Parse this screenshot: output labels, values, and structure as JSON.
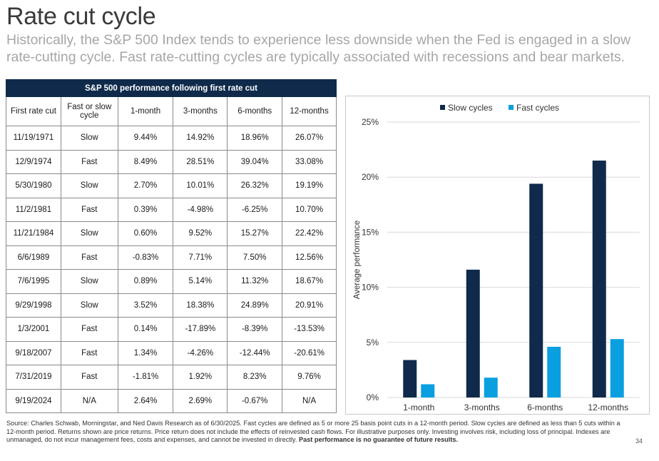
{
  "title": "Rate cut cycle",
  "subtitle": "Historically, the S&P 500 Index tends to experience less downside when the Fed is engaged in a slow rate-cutting cycle. Fast rate-cutting cycles are typically associated with recessions and bear markets.",
  "table": {
    "caption": "S&P 500 performance following first rate cut",
    "headers": [
      "First rate cut",
      "Fast or slow cycle",
      "1-month",
      "3-months",
      "6-months",
      "12-months"
    ],
    "rows": [
      [
        "11/19/1971",
        "Slow",
        "9.44%",
        "14.92%",
        "18.96%",
        "26.07%"
      ],
      [
        "12/9/1974",
        "Fast",
        "8.49%",
        "28.51%",
        "39.04%",
        "33.08%"
      ],
      [
        "5/30/1980",
        "Slow",
        "2.70%",
        "10.01%",
        "26.32%",
        "19.19%"
      ],
      [
        "11/2/1981",
        "Fast",
        "0.39%",
        "-4.98%",
        "-6.25%",
        "10.70%"
      ],
      [
        "11/21/1984",
        "Slow",
        "0.60%",
        "9.52%",
        "15.27%",
        "22.42%"
      ],
      [
        "6/6/1989",
        "Fast",
        "-0.83%",
        "7.71%",
        "7.50%",
        "12.56%"
      ],
      [
        "7/6/1995",
        "Slow",
        "0.89%",
        "5.14%",
        "11.32%",
        "18.67%"
      ],
      [
        "9/29/1998",
        "Slow",
        "3.52%",
        "18.38%",
        "24.89%",
        "20.91%"
      ],
      [
        "1/3/2001",
        "Fast",
        "0.14%",
        "-17.89%",
        "-8.39%",
        "-13.53%"
      ],
      [
        "9/18/2007",
        "Fast",
        "1.34%",
        "-4.26%",
        "-12.44%",
        "-20.61%"
      ],
      [
        "7/31/2019",
        "Fast",
        "-1.81%",
        "1.92%",
        "8.23%",
        "9.76%"
      ],
      [
        "9/19/2024",
        "N/A",
        "2.64%",
        "2.69%",
        "-0.67%",
        "N/A"
      ]
    ]
  },
  "chart_data": {
    "type": "bar",
    "title": "",
    "xlabel": "",
    "ylabel": "Average performance",
    "categories": [
      "1-month",
      "3-months",
      "6-months",
      "12-months"
    ],
    "series": [
      {
        "name": "Slow cycles",
        "color": "#0f2a4a",
        "values": [
          3.4,
          11.6,
          19.4,
          21.5
        ]
      },
      {
        "name": "Fast cycles",
        "color": "#0aa0e0",
        "values": [
          1.2,
          1.8,
          4.6,
          5.3
        ]
      }
    ],
    "ylim": [
      0,
      25
    ],
    "yticks": [
      0,
      5,
      10,
      15,
      20,
      25
    ],
    "ytick_labels": [
      "0%",
      "5%",
      "10%",
      "15%",
      "20%",
      "25%"
    ],
    "legend_position": "top",
    "grid": true
  },
  "footnote": {
    "text": "Source: Charles Schwab, Morningstar, and Ned Davis Research as of 6/30/2025. Fast cycles are defined as 5 or more 25 basis point cuts in a 12-month period. Slow cycles are defined as less than 5 cuts within a 12-month period. Returns shown are price returns. Price return does not include the effects of reinvested cash flows. For illustrative purposes only. Investing involves risk, including loss of principal. Indexes are unmanaged, do not incur management fees, costs and expenses, and cannot be invested in directly. ",
    "bold": "Past performance is no guarantee of future results."
  },
  "page_number": "34"
}
